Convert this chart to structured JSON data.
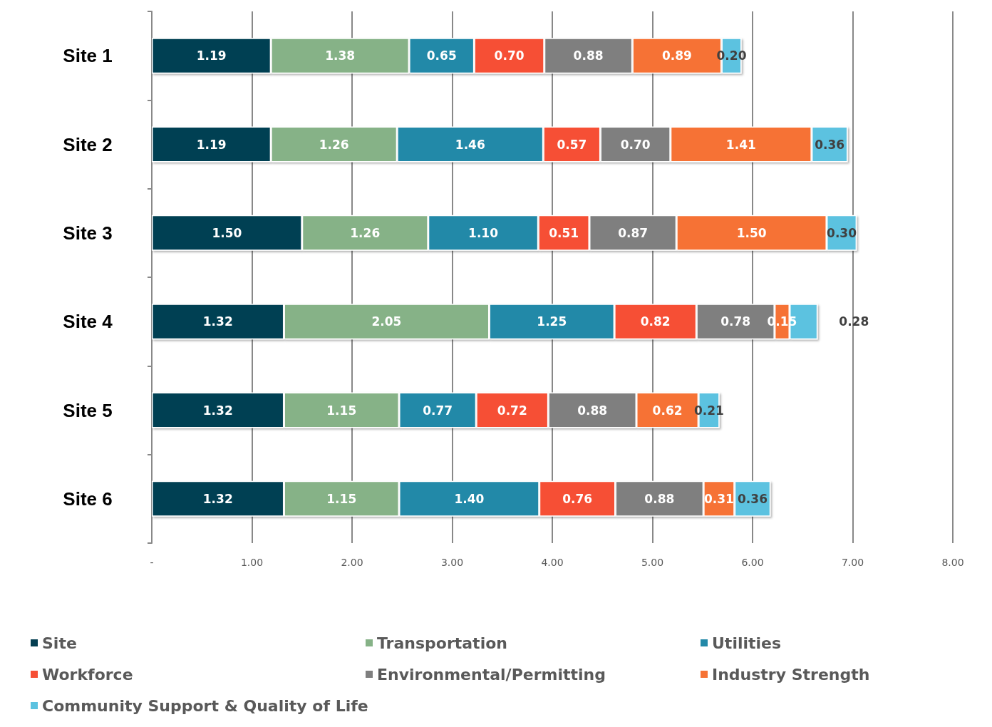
{
  "chart_data": {
    "type": "bar",
    "orientation": "horizontal",
    "stacked": true,
    "grid": "x",
    "legend": "bottom",
    "categories": [
      "Site 1",
      "Site 2",
      "Site 3",
      "Site 4",
      "Site 5",
      "Site 6"
    ],
    "xlim": [
      0,
      8
    ],
    "xticks": [
      {
        "value": 0,
        "label": "-"
      },
      {
        "value": 1,
        "label": "1.00"
      },
      {
        "value": 2,
        "label": "2.00"
      },
      {
        "value": 3,
        "label": "3.00"
      },
      {
        "value": 4,
        "label": "4.00"
      },
      {
        "value": 5,
        "label": "5.00"
      },
      {
        "value": 6,
        "label": "6.00"
      },
      {
        "value": 7,
        "label": "7.00"
      },
      {
        "value": 8,
        "label": "8.00"
      }
    ],
    "series": [
      {
        "name": "Site",
        "color": "#053f52",
        "values": [
          1.19,
          1.19,
          1.5,
          1.32,
          1.32,
          1.32
        ],
        "value_labels": [
          "1.19",
          "1.19",
          "1.50",
          "1.32",
          "1.32",
          "1.32"
        ]
      },
      {
        "name": "Transportation",
        "color": "#86b287",
        "values": [
          1.38,
          1.26,
          1.26,
          2.05,
          1.15,
          1.15
        ],
        "value_labels": [
          "1.38",
          "1.26",
          "1.26",
          "2.05",
          "1.15",
          "1.15"
        ]
      },
      {
        "name": "Utilities",
        "color": "#2389a8",
        "values": [
          0.65,
          1.46,
          1.1,
          1.25,
          0.77,
          1.4
        ],
        "value_labels": [
          "0.65",
          "1.46",
          "1.10",
          "1.25",
          "0.77",
          "1.40"
        ]
      },
      {
        "name": "Workforce",
        "color": "#f64f35",
        "values": [
          0.7,
          0.57,
          0.51,
          0.82,
          0.72,
          0.76
        ],
        "value_labels": [
          "0.70",
          "0.57",
          "0.51",
          "0.82",
          "0.72",
          "0.76"
        ]
      },
      {
        "name": "Environmental/Permitting",
        "color": "#7f7f7f",
        "values": [
          0.88,
          0.7,
          0.87,
          0.78,
          0.88,
          0.88
        ],
        "value_labels": [
          "0.88",
          "0.70",
          "0.87",
          "0.78",
          "0.88",
          "0.88"
        ]
      },
      {
        "name": "Industry Strength",
        "color": "#f67234",
        "values": [
          0.89,
          1.41,
          1.5,
          0.15,
          0.62,
          0.31
        ],
        "value_labels": [
          "0.89",
          "1.41",
          "1.50",
          "0.15",
          "0.62",
          "0.31"
        ]
      },
      {
        "name": "Community Support & Quality of Life",
        "color": "#5bc2e0",
        "values": [
          0.2,
          0.36,
          0.3,
          0.28,
          0.21,
          0.36
        ],
        "value_labels": [
          "0.20",
          "0.36",
          "0.30",
          "0.28",
          "0.21",
          "0.36"
        ]
      }
    ]
  }
}
